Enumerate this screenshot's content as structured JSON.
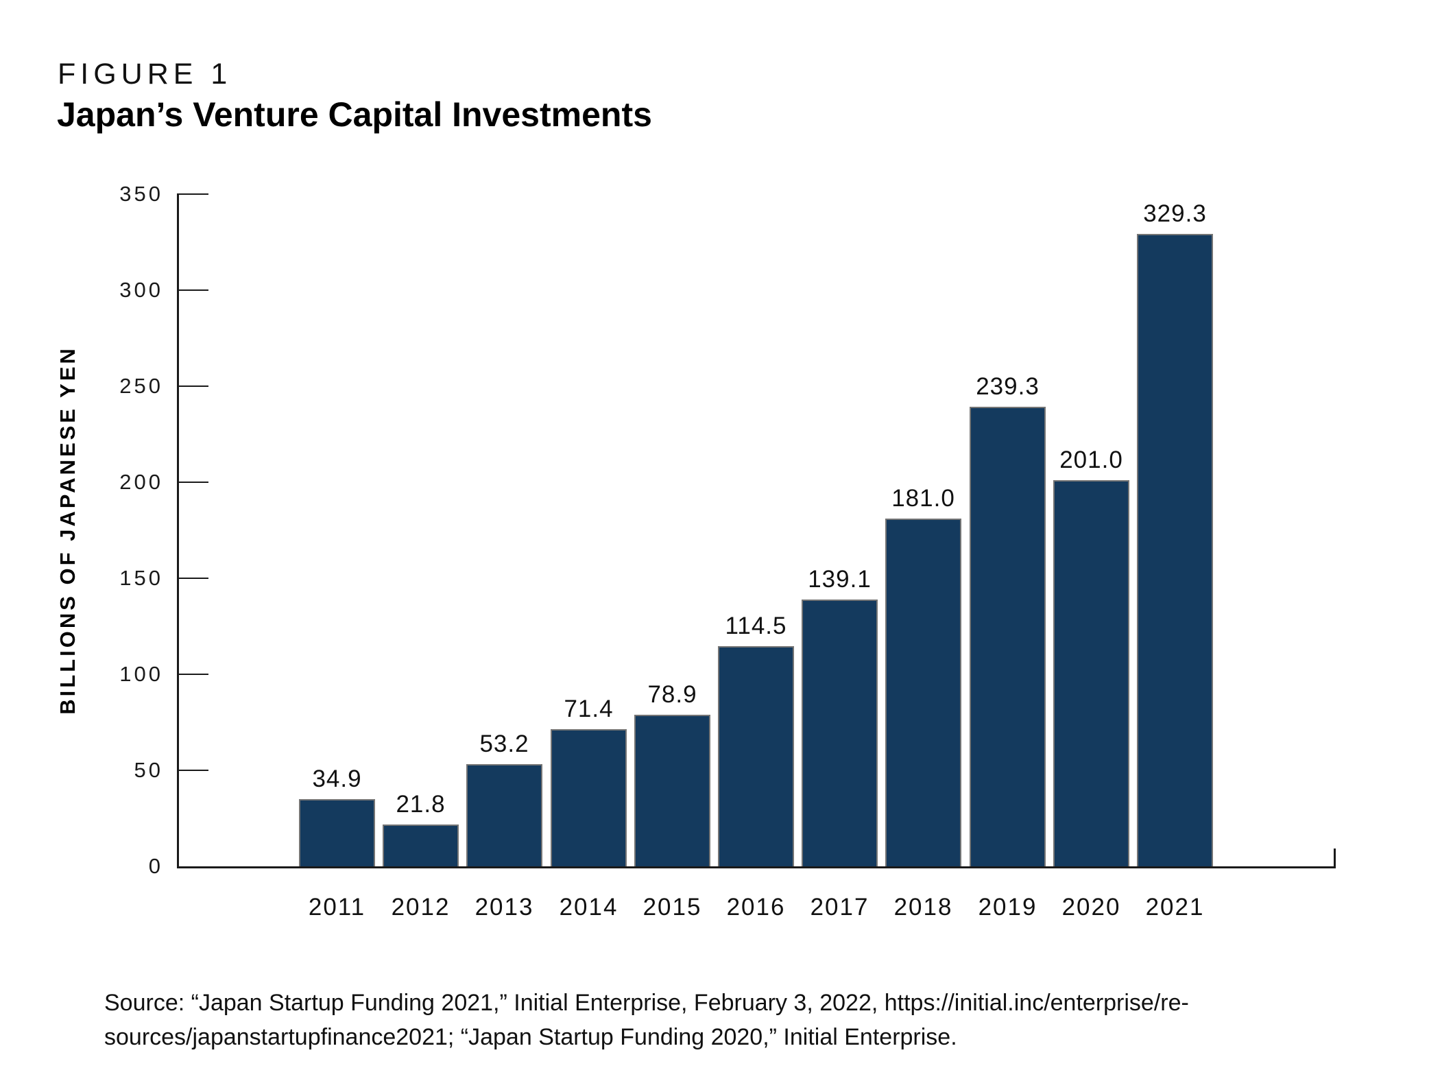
{
  "figure_label": "FIGURE 1",
  "title": "Japan’s Venture Capital Investments",
  "source": {
    "line1": "Source: “Japan Startup Funding 2021,” Initial Enterprise, February 3, 2022, https://initial.inc/enterprise/re-",
    "line2": "sources/japanstartupfinance2021; “Japan Startup Funding 2020,” Initial Enterprise."
  },
  "colors": {
    "bar_fill": "#143A5E",
    "bar_outline": "#757575",
    "axis": "#1A1A1A",
    "text": "#111111"
  },
  "chart_data": {
    "type": "bar",
    "categories": [
      "2011",
      "2012",
      "2013",
      "2014",
      "2015",
      "2016",
      "2017",
      "2018",
      "2019",
      "2020",
      "2021"
    ],
    "values": [
      34.9,
      21.8,
      53.2,
      71.4,
      78.9,
      114.5,
      139.1,
      181.0,
      239.3,
      201.0,
      329.3
    ],
    "value_labels": [
      "34.9",
      "21.8",
      "53.2",
      "71.4",
      "78.9",
      "114.5",
      "139.1",
      "181.0",
      "239.3",
      "201.0",
      "329.3"
    ],
    "title": "Japan’s Venture Capital Investments",
    "xlabel": "",
    "ylabel": "BILLIONS OF JAPANESE YEN",
    "ylim": [
      0,
      350
    ],
    "yticks": [
      0,
      50,
      100,
      150,
      200,
      250,
      300,
      350
    ],
    "grid": false,
    "legend": false,
    "bar_labels_position": "above",
    "tick_direction": "inward"
  }
}
